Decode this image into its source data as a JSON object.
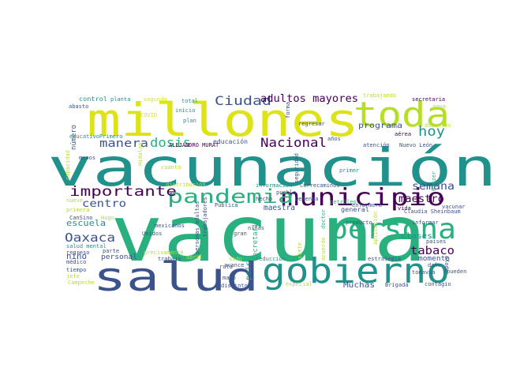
{
  "colors": {
    "purple": "#440154",
    "indigo": "#3b528b",
    "teal": "#21918c",
    "green": "#2ab07f",
    "lime": "#b5de2b",
    "yellow": "#dde318"
  },
  "words": [
    {
      "t": "vacunación",
      "c": "#21918c"
    },
    {
      "t": "vacuna",
      "c": "#2ab07f"
    },
    {
      "t": "millones",
      "c": "#dde318"
    },
    {
      "t": "salud",
      "c": "#3b528b"
    },
    {
      "t": "gobierno",
      "c": "#21918c"
    },
    {
      "t": "toda",
      "c": "#b5de2b"
    },
    {
      "t": "persona",
      "c": "#2ab07f"
    },
    {
      "t": "municipio",
      "c": "#440154"
    },
    {
      "t": "pandemia",
      "c": "#2ab07f"
    },
    {
      "t": "importante",
      "c": "#440154"
    },
    {
      "t": "Ciudad",
      "c": "#3b528b"
    },
    {
      "t": "adultos mayores",
      "c": "#440154"
    },
    {
      "t": "Nacional",
      "c": "#440154"
    },
    {
      "t": "dosis",
      "c": "#2ab07f"
    },
    {
      "t": "manera",
      "c": "#3b528b"
    },
    {
      "t": "hoy",
      "c": "#21918c"
    },
    {
      "t": "semana",
      "c": "#3b528b"
    },
    {
      "t": "centro",
      "c": "#3b528b"
    },
    {
      "t": "maestro",
      "c": "#440154"
    },
    {
      "t": "Oaxaca",
      "c": "#3b528b"
    },
    {
      "t": "tabaco",
      "c": "#440154"
    },
    {
      "t": "escuela",
      "c": "#21918c"
    },
    {
      "t": "niño",
      "c": "#3b528b"
    },
    {
      "t": "clases",
      "c": "#21918c"
    },
    {
      "t": "programa",
      "c": "#3b528b"
    },
    {
      "t": "educación",
      "c": "#3b528b"
    },
    {
      "t": "maestra",
      "c": "#3b528b"
    },
    {
      "t": "país",
      "c": "#21918c"
    },
    {
      "t": "Secretaría",
      "c": "#2ab07f"
    },
    {
      "t": "Muchas",
      "c": "#3b528b"
    },
    {
      "t": "momento",
      "c": "#3b528b"
    },
    {
      "t": "personal",
      "c": "#3b528b"
    },
    {
      "t": "general",
      "c": "#3b528b"
    },
    {
      "t": "número",
      "c": "#3b528b"
    },
    {
      "t": "control",
      "c": "#21918c"
    },
    {
      "t": "semana2",
      "c": "#3b528b"
    }
  ],
  "small_words": [
    "planta",
    "segunda",
    "total",
    "inicio",
    "plan",
    "trabajando",
    "secretaria",
    "abasto",
    "COVID",
    "forma",
    "regresar",
    "docentes",
    "agua",
    "educativoPrimero",
    "años",
    "aérea",
    "atención",
    "Nuevo León",
    "ALEJANDRO MURAT",
    "menos",
    "capacidad",
    "seguridad",
    "cuanto",
    "Hidalgo",
    "primer",
    "distribución",
    "información",
    "Correcaminos",
    "vacunar",
    "Pfizer",
    "hecho",
    "pueblo",
    "Defensa",
    "enfermera",
    "vida",
    "nueve",
    "Pública",
    "petróleo",
    "Claudia Sheinbaum",
    "primera",
    "CanSino",
    "Hugo",
    "trabajadores",
    "niñas",
    "gran",
    "producto",
    "países",
    "regreso",
    "mexicanos",
    "Unidos",
    "salud mental",
    "parte",
    "sido",
    "avance",
    "reducción",
    "siete",
    "acuerdo",
    "apoyo",
    "médico",
    "trabajo",
    "abril",
    "ruta",
    "estrategia",
    "daño",
    "pueden",
    "tiempo",
    "precisamente",
    "personas adultas",
    "mayo",
    "especial",
    "Brigada",
    "todavía",
    "Campeche",
    "jefe",
    "distinto",
    "contagio",
    "aplicación",
    "informar",
    "doctor",
    "momento"
  ]
}
